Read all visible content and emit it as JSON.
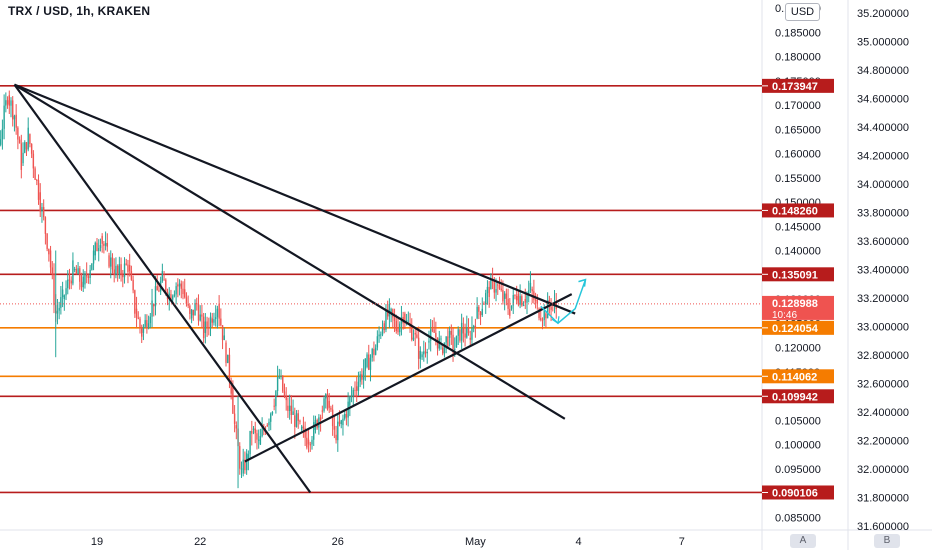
{
  "header": {
    "title": "TRX / USD, 1h, KRAKEN",
    "currency": "USD"
  },
  "footer": {
    "btn_a": "A",
    "btn_b": "B"
  },
  "chart_data": {
    "type": "candlestick",
    "title": "TRX / USD, 1h, KRAKEN",
    "ylim": [
      0.081,
      0.191
    ],
    "y_ticks": [
      "0.190000",
      "0.185000",
      "0.180000",
      "0.175000",
      "0.170000",
      "0.165000",
      "0.160000",
      "0.155000",
      "0.150000",
      "0.145000",
      "0.140000",
      "0.135000",
      "0.130000",
      "0.125000",
      "0.120000",
      "0.115000",
      "0.110000",
      "0.105000",
      "0.100000",
      "0.095000",
      "0.090000",
      "0.085000"
    ],
    "y2_ticks": [
      "35.200000",
      "35.000000",
      "34.800000",
      "34.600000",
      "34.400000",
      "34.200000",
      "34.000000",
      "33.800000",
      "33.600000",
      "33.400000",
      "33.200000",
      "33.000000",
      "32.800000",
      "32.600000",
      "32.400000",
      "32.200000",
      "32.000000",
      "31.800000",
      "31.600000"
    ],
    "x_ticks": [
      {
        "label": "19",
        "t": 19
      },
      {
        "label": "22",
        "t": 22
      },
      {
        "label": "26",
        "t": 26
      },
      {
        "label": "May",
        "t": 30
      },
      {
        "label": "4",
        "t": 33
      },
      {
        "label": "7",
        "t": 36
      }
    ],
    "current_price": {
      "value": "0.128988",
      "time": "10:46"
    },
    "horizontal_levels": [
      {
        "value": "0.173947",
        "color": "#b71c1c"
      },
      {
        "value": "0.148260",
        "color": "#b71c1c"
      },
      {
        "value": "0.135091",
        "color": "#b71c1c"
      },
      {
        "value": "0.124054",
        "color": "#f57c00"
      },
      {
        "value": "0.114062",
        "color": "#f57c00"
      },
      {
        "value": "0.109942",
        "color": "#b71c1c"
      },
      {
        "value": "0.090106",
        "color": "#b71c1c"
      }
    ],
    "trend_lines": [
      {
        "from": [
          16.6,
          0.1742
        ],
        "to": [
          25.2,
          0.0901
        ]
      },
      {
        "from": [
          16.6,
          0.1742
        ],
        "to": [
          32.6,
          0.1053
        ]
      },
      {
        "from": [
          16.6,
          0.1742
        ],
        "to": [
          32.9,
          0.127
        ]
      },
      {
        "from": [
          23.3,
          0.0965
        ],
        "to": [
          32.8,
          0.131
        ]
      }
    ],
    "projection": [
      [
        31.9,
        0.1285
      ],
      [
        32.4,
        0.125
      ],
      [
        32.9,
        0.128
      ],
      [
        33.2,
        0.134
      ]
    ],
    "price_path": [
      [
        15.0,
        0.15
      ],
      [
        15.3,
        0.137
      ],
      [
        15.5,
        0.155
      ],
      [
        15.7,
        0.165
      ],
      [
        15.9,
        0.17
      ],
      [
        16.1,
        0.16
      ],
      [
        16.4,
        0.172
      ],
      [
        16.6,
        0.168
      ],
      [
        16.8,
        0.158
      ],
      [
        17.0,
        0.164
      ],
      [
        17.3,
        0.152
      ],
      [
        17.6,
        0.14
      ],
      [
        17.8,
        0.127
      ],
      [
        18.0,
        0.13
      ],
      [
        18.3,
        0.136
      ],
      [
        18.6,
        0.133
      ],
      [
        18.9,
        0.139
      ],
      [
        19.1,
        0.143
      ],
      [
        19.3,
        0.139
      ],
      [
        19.6,
        0.135
      ],
      [
        19.9,
        0.137
      ],
      [
        20.1,
        0.128
      ],
      [
        20.3,
        0.123
      ],
      [
        20.6,
        0.129
      ],
      [
        20.9,
        0.134
      ],
      [
        21.1,
        0.131
      ],
      [
        21.3,
        0.133
      ],
      [
        21.5,
        0.132
      ],
      [
        21.7,
        0.126
      ],
      [
        21.9,
        0.129
      ],
      [
        22.1,
        0.123
      ],
      [
        22.3,
        0.126
      ],
      [
        22.5,
        0.129
      ],
      [
        22.7,
        0.121
      ],
      [
        22.9,
        0.112
      ],
      [
        23.0,
        0.104
      ],
      [
        23.2,
        0.094
      ],
      [
        23.35,
        0.097
      ],
      [
        23.5,
        0.103
      ],
      [
        23.7,
        0.1
      ],
      [
        23.9,
        0.104
      ],
      [
        24.1,
        0.108
      ],
      [
        24.3,
        0.114
      ],
      [
        24.5,
        0.108
      ],
      [
        24.7,
        0.106
      ],
      [
        24.9,
        0.103
      ],
      [
        25.1,
        0.101
      ],
      [
        25.3,
        0.103
      ],
      [
        25.5,
        0.107
      ],
      [
        25.7,
        0.109
      ],
      [
        25.9,
        0.102
      ],
      [
        26.1,
        0.104
      ],
      [
        26.3,
        0.108
      ],
      [
        26.5,
        0.112
      ],
      [
        26.8,
        0.116
      ],
      [
        27.1,
        0.12
      ],
      [
        27.3,
        0.125
      ],
      [
        27.5,
        0.127
      ],
      [
        27.7,
        0.124
      ],
      [
        27.9,
        0.127
      ],
      [
        28.0,
        0.125
      ],
      [
        28.2,
        0.123
      ],
      [
        28.4,
        0.118
      ],
      [
        28.6,
        0.121
      ],
      [
        28.8,
        0.123
      ],
      [
        29.0,
        0.12
      ],
      [
        29.2,
        0.122
      ],
      [
        29.4,
        0.12
      ],
      [
        29.6,
        0.124
      ],
      [
        29.8,
        0.122
      ],
      [
        30.0,
        0.126
      ],
      [
        30.2,
        0.129
      ],
      [
        30.4,
        0.132
      ],
      [
        30.6,
        0.133
      ],
      [
        30.8,
        0.13
      ],
      [
        31.0,
        0.128
      ],
      [
        31.2,
        0.131
      ],
      [
        31.4,
        0.13
      ],
      [
        31.6,
        0.132
      ],
      [
        31.8,
        0.128
      ],
      [
        32.0,
        0.127
      ],
      [
        32.2,
        0.129
      ],
      [
        32.35,
        0.128
      ]
    ]
  }
}
